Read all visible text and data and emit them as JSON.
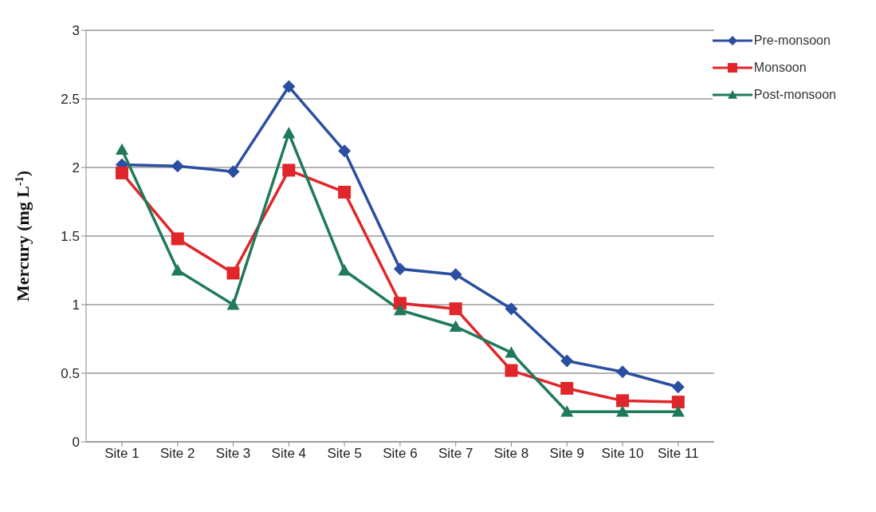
{
  "chart_data": {
    "type": "line",
    "ylabel": "Mercury (mg L$^{-1}$)",
    "categories": [
      "Site 1",
      "Site 2",
      "Site 3",
      "Site 4",
      "Site 5",
      "Site 6",
      "Site 7",
      "Site 8",
      "Site 9",
      "Site 10",
      "Site 11"
    ],
    "series": [
      {
        "name": "Pre-monsoon",
        "color": "#2a4fa0",
        "marker": "diamond",
        "values": [
          2.02,
          2.01,
          1.97,
          2.59,
          2.12,
          1.26,
          1.22,
          0.97,
          0.59,
          0.51,
          0.4
        ]
      },
      {
        "name": "Monsoon",
        "color": "#e0262a",
        "marker": "square",
        "values": [
          1.96,
          1.48,
          1.23,
          1.98,
          1.82,
          1.01,
          0.97,
          0.52,
          0.39,
          0.3,
          0.29
        ]
      },
      {
        "name": "Post-monsoon",
        "color": "#1f7a5a",
        "marker": "triangle",
        "values": [
          2.13,
          1.25,
          1.0,
          2.25,
          1.25,
          0.96,
          0.84,
          0.65,
          0.22,
          0.22,
          0.22
        ]
      }
    ],
    "ylim": [
      0,
      3
    ],
    "yticks": [
      0,
      0.5,
      1,
      1.5,
      2,
      2.5,
      3
    ],
    "grid": "y",
    "legend": "top right"
  }
}
